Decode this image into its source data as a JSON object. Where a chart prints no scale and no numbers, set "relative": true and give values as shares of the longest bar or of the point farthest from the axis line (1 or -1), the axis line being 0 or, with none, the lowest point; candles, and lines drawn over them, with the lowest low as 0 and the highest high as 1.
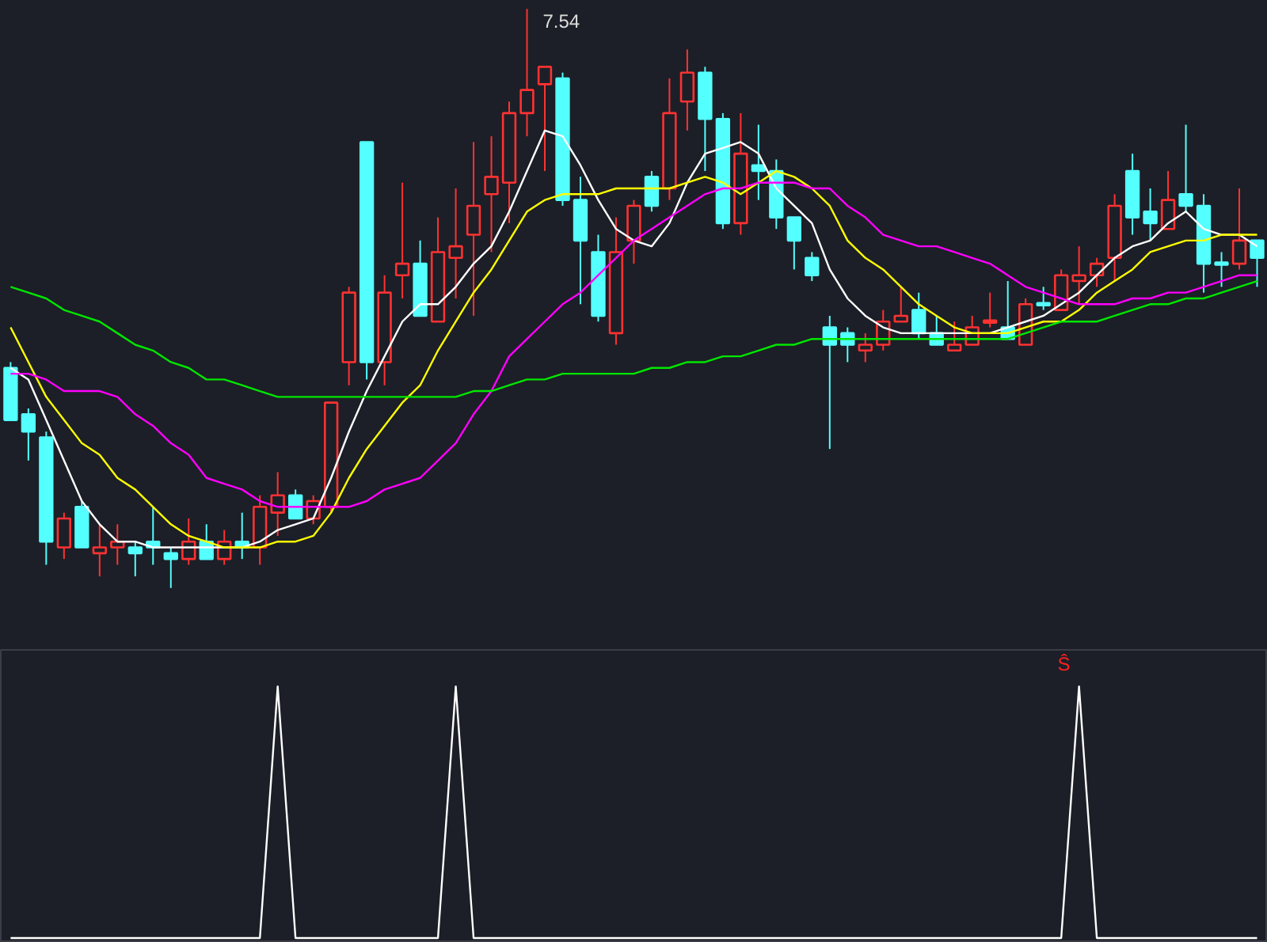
{
  "chart_data": [
    {
      "type": "candlestick",
      "relative": true,
      "categories": [
        null,
        null,
        null,
        null,
        null,
        null,
        null,
        null,
        null,
        null,
        null,
        null,
        null,
        null,
        null,
        null,
        null,
        null,
        null,
        null,
        null,
        null,
        null,
        null,
        null,
        null,
        null,
        null,
        null,
        null,
        null,
        null,
        null,
        null,
        null,
        null,
        null,
        null,
        null,
        null,
        null,
        null,
        null,
        null,
        null,
        null,
        null,
        null,
        null,
        null,
        null,
        null,
        null,
        null,
        null,
        null,
        null,
        null,
        null,
        null,
        null,
        null,
        null,
        null,
        null,
        null,
        null,
        null,
        null,
        null,
        null
      ],
      "ohlc": [
        [
          0.38,
          0.39,
          0.29,
          0.29
        ],
        [
          0.3,
          0.31,
          0.22,
          0.27
        ],
        [
          0.26,
          0.27,
          0.04,
          0.08
        ],
        [
          0.07,
          0.13,
          0.05,
          0.12
        ],
        [
          0.14,
          0.15,
          0.07,
          0.07
        ],
        [
          0.06,
          0.11,
          0.02,
          0.07
        ],
        [
          0.07,
          0.11,
          0.04,
          0.08
        ],
        [
          0.07,
          0.08,
          0.02,
          0.06
        ],
        [
          0.08,
          0.14,
          0.04,
          0.07
        ],
        [
          0.06,
          0.07,
          0,
          0.05
        ],
        [
          0.05,
          0.12,
          0.04,
          0.08
        ],
        [
          0.08,
          0.11,
          0.05,
          0.05
        ],
        [
          0.05,
          0.1,
          0.04,
          0.08
        ],
        [
          0.08,
          0.13,
          0.05,
          0.07
        ],
        [
          0.07,
          0.16,
          0.04,
          0.14
        ],
        [
          0.13,
          0.2,
          0.09,
          0.16
        ],
        [
          0.16,
          0.17,
          0.12,
          0.12
        ],
        [
          0.12,
          0.16,
          0.11,
          0.15
        ],
        [
          0.14,
          0.32,
          0.13,
          0.32
        ],
        [
          0.39,
          0.52,
          0.35,
          0.51
        ],
        [
          0.77,
          0.77,
          0.36,
          0.39
        ],
        [
          0.39,
          0.54,
          0.35,
          0.51
        ],
        [
          0.54,
          0.7,
          0.5,
          0.56
        ],
        [
          0.56,
          0.6,
          0.47,
          0.47
        ],
        [
          0.46,
          0.64,
          0.46,
          0.58
        ],
        [
          0.57,
          0.69,
          0.5,
          0.59
        ],
        [
          0.61,
          0.77,
          0.47,
          0.66
        ],
        [
          0.68,
          0.78,
          0.58,
          0.71
        ],
        [
          0.7,
          0.84,
          0.63,
          0.82
        ],
        [
          0.82,
          1,
          0.78,
          0.86
        ],
        [
          0.87,
          0.9,
          0.72,
          0.9
        ],
        [
          0.88,
          0.89,
          0.66,
          0.67
        ],
        [
          0.67,
          0.71,
          0.49,
          0.6
        ],
        [
          0.58,
          0.61,
          0.46,
          0.47
        ],
        [
          0.44,
          0.64,
          0.42,
          0.58
        ],
        [
          0.6,
          0.67,
          0.56,
          0.66
        ],
        [
          0.71,
          0.72,
          0.65,
          0.66
        ],
        [
          0.69,
          0.88,
          0.67,
          0.82
        ],
        [
          0.84,
          0.93,
          0.79,
          0.89
        ],
        [
          0.89,
          0.9,
          0.72,
          0.81
        ],
        [
          0.81,
          0.82,
          0.62,
          0.63
        ],
        [
          0.63,
          0.82,
          0.61,
          0.75
        ],
        [
          0.73,
          0.8,
          0.67,
          0.72
        ],
        [
          0.72,
          0.74,
          0.62,
          0.64
        ],
        [
          0.64,
          0.64,
          0.55,
          0.6
        ],
        [
          0.57,
          0.58,
          0.53,
          0.54
        ],
        [
          0.45,
          0.47,
          0.24,
          0.42
        ],
        [
          0.44,
          0.45,
          0.39,
          0.42
        ],
        [
          0.41,
          0.44,
          0.39,
          0.42
        ],
        [
          0.42,
          0.48,
          0.41,
          0.46
        ],
        [
          0.46,
          0.52,
          0.46,
          0.47
        ],
        [
          0.48,
          0.51,
          0.43,
          0.44
        ],
        [
          0.44,
          0.47,
          0.42,
          0.42
        ],
        [
          0.41,
          0.46,
          0.41,
          0.42
        ],
        [
          0.42,
          0.47,
          0.42,
          0.45
        ],
        [
          0.46,
          0.51,
          0.45,
          0.46
        ],
        [
          0.45,
          0.53,
          0.43,
          0.43
        ],
        [
          0.42,
          0.5,
          0.42,
          0.49
        ],
        [
          0.49,
          0.52,
          0.48,
          0.49
        ],
        [
          0.48,
          0.55,
          0.48,
          0.54
        ],
        [
          0.53,
          0.59,
          0.49,
          0.54
        ],
        [
          0.54,
          0.57,
          0.52,
          0.56
        ],
        [
          0.57,
          0.68,
          0.53,
          0.66
        ],
        [
          0.72,
          0.75,
          0.61,
          0.64
        ],
        [
          0.65,
          0.69,
          0.6,
          0.63
        ],
        [
          0.62,
          0.72,
          0.62,
          0.67
        ],
        [
          0.68,
          0.8,
          0.65,
          0.66
        ],
        [
          0.66,
          0.68,
          0.51,
          0.56
        ],
        [
          0.56,
          0.58,
          0.52,
          0.56
        ],
        [
          0.56,
          0.69,
          0.55,
          0.6
        ],
        [
          0.6,
          0.6,
          0.52,
          0.57
        ]
      ],
      "colors": [
        "#54ffff",
        "#54ffff",
        "#54ffff",
        "#ff3232",
        "#54ffff",
        "#ff3232",
        "#ff3232",
        "#54ffff",
        "#54ffff",
        "#54ffff",
        "#ff3232",
        "#54ffff",
        "#ff3232",
        "#54ffff",
        "#ff3232",
        "#ff3232",
        "#54ffff",
        "#ff3232",
        "#ff3232",
        "#ff3232",
        "#54ffff",
        "#ff3232",
        "#ff3232",
        "#54ffff",
        "#ff3232",
        "#ff3232",
        "#ff3232",
        "#ff3232",
        "#ff3232",
        "#ff3232",
        "#ff3232",
        "#54ffff",
        "#54ffff",
        "#54ffff",
        "#ff3232",
        "#ff3232",
        "#54ffff",
        "#ff3232",
        "#ff3232",
        "#54ffff",
        "#54ffff",
        "#ff3232",
        "#54ffff",
        "#54ffff",
        "#54ffff",
        "#54ffff",
        "#54ffff",
        "#54ffff",
        "#ff3232",
        "#ff3232",
        "#ff3232",
        "#54ffff",
        "#54ffff",
        "#ff3232",
        "#ff3232",
        "#ff3232",
        "#54ffff",
        "#ff3232",
        "#54ffff",
        "#ff3232",
        "#ff3232",
        "#ff3232",
        "#ff3232",
        "#54ffff",
        "#54ffff",
        "#ff3232",
        "#54ffff",
        "#54ffff",
        "#54ffff",
        "#ff3232",
        "#54ffff"
      ],
      "series": [
        {
          "type": "line",
          "color": "#ffffff",
          "values": [
            0.38,
            0.36,
            0.29,
            0.22,
            0.15,
            0.11,
            0.08,
            0.08,
            0.07,
            0.07,
            0.07,
            0.07,
            0.07,
            0.07,
            0.08,
            0.1,
            0.11,
            0.12,
            0.19,
            0.27,
            0.34,
            0.4,
            0.46,
            0.49,
            0.49,
            0.52,
            0.56,
            0.59,
            0.65,
            0.72,
            0.79,
            0.78,
            0.73,
            0.67,
            0.62,
            0.6,
            0.59,
            0.63,
            0.7,
            0.75,
            0.76,
            0.77,
            0.75,
            0.69,
            0.66,
            0.63,
            0.55,
            0.5,
            0.47,
            0.45,
            0.44,
            0.44,
            0.44,
            0.44,
            0.44,
            0.44,
            0.45,
            0.46,
            0.47,
            0.49,
            0.51,
            0.54,
            0.57,
            0.59,
            0.6,
            0.63,
            0.65,
            0.62,
            0.61,
            0.61,
            0.59
          ]
        },
        {
          "type": "line",
          "color": "#ffff00",
          "values": [
            0.45,
            0.39,
            0.33,
            0.29,
            0.25,
            0.23,
            0.19,
            0.17,
            0.14,
            0.11,
            0.09,
            0.08,
            0.07,
            0.07,
            0.07,
            0.08,
            0.08,
            0.09,
            0.13,
            0.19,
            0.24,
            0.28,
            0.32,
            0.35,
            0.41,
            0.46,
            0.51,
            0.55,
            0.6,
            0.65,
            0.67,
            0.68,
            0.68,
            0.68,
            0.69,
            0.69,
            0.69,
            0.69,
            0.7,
            0.71,
            0.7,
            0.68,
            0.7,
            0.72,
            0.71,
            0.69,
            0.66,
            0.6,
            0.57,
            0.55,
            0.52,
            0.49,
            0.47,
            0.45,
            0.44,
            0.44,
            0.44,
            0.45,
            0.46,
            0.46,
            0.48,
            0.51,
            0.53,
            0.55,
            0.58,
            0.59,
            0.6,
            0.6,
            0.61,
            0.61,
            0.61
          ]
        },
        {
          "type": "line",
          "color": "#ff00ff",
          "values": [
            0.37,
            0.37,
            0.36,
            0.34,
            0.34,
            0.34,
            0.33,
            0.3,
            0.28,
            0.25,
            0.23,
            0.19,
            0.18,
            0.17,
            0.15,
            0.14,
            0.14,
            0.14,
            0.14,
            0.14,
            0.15,
            0.17,
            0.18,
            0.19,
            0.22,
            0.25,
            0.3,
            0.34,
            0.4,
            0.43,
            0.46,
            0.49,
            0.51,
            0.54,
            0.57,
            0.6,
            0.62,
            0.64,
            0.66,
            0.68,
            0.69,
            0.69,
            0.7,
            0.7,
            0.7,
            0.69,
            0.69,
            0.66,
            0.64,
            0.61,
            0.6,
            0.59,
            0.59,
            0.58,
            0.57,
            0.56,
            0.54,
            0.52,
            0.51,
            0.5,
            0.49,
            0.49,
            0.49,
            0.5,
            0.5,
            0.51,
            0.51,
            0.52,
            0.53,
            0.54,
            0.54
          ]
        },
        {
          "type": "line",
          "color": "#00e600",
          "values": [
            0.52,
            0.51,
            0.5,
            0.48,
            0.47,
            0.46,
            0.44,
            0.42,
            0.41,
            0.39,
            0.38,
            0.36,
            0.36,
            0.35,
            0.34,
            0.33,
            0.33,
            0.33,
            0.33,
            0.33,
            0.33,
            0.33,
            0.33,
            0.33,
            0.33,
            0.33,
            0.34,
            0.34,
            0.35,
            0.36,
            0.36,
            0.37,
            0.37,
            0.37,
            0.37,
            0.37,
            0.38,
            0.38,
            0.39,
            0.39,
            0.4,
            0.4,
            0.41,
            0.42,
            0.42,
            0.43,
            0.43,
            0.43,
            0.43,
            0.43,
            0.43,
            0.43,
            0.43,
            0.43,
            0.43,
            0.43,
            0.43,
            0.44,
            0.45,
            0.46,
            0.46,
            0.46,
            0.47,
            0.48,
            0.49,
            0.49,
            0.5,
            0.5,
            0.51,
            0.52,
            0.53
          ]
        }
      ],
      "annotations": [
        "7.54"
      ]
    },
    {
      "type": "line",
      "relative": true,
      "categories": [
        null,
        null,
        null,
        null,
        null,
        null,
        null,
        null,
        null,
        null,
        null,
        null,
        null,
        null,
        null,
        null,
        null,
        null,
        null,
        null,
        null,
        null,
        null,
        null,
        null,
        null,
        null,
        null,
        null,
        null,
        null,
        null,
        null,
        null,
        null,
        null,
        null,
        null,
        null,
        null,
        null,
        null,
        null,
        null,
        null,
        null,
        null,
        null,
        null,
        null,
        null,
        null,
        null,
        null,
        null,
        null,
        null,
        null,
        null,
        null,
        null,
        null,
        null,
        null,
        null,
        null,
        null,
        null,
        null,
        null,
        null
      ],
      "series": [
        {
          "color": "#ffffff",
          "values": [
            0,
            0,
            0,
            0,
            0,
            0,
            0,
            0,
            0,
            0,
            0,
            0,
            0,
            0,
            0,
            1,
            0,
            0,
            0,
            0,
            0,
            0,
            0,
            0,
            0,
            1,
            0,
            0,
            0,
            0,
            0,
            0,
            0,
            0,
            0,
            0,
            0,
            0,
            0,
            0,
            0,
            0,
            0,
            0,
            0,
            0,
            0,
            0,
            0,
            0,
            0,
            0,
            0,
            0,
            0,
            0,
            0,
            0,
            0,
            0,
            1,
            0,
            0,
            0,
            0,
            0,
            0,
            0,
            0,
            0,
            0
          ]
        }
      ],
      "annotations": [
        "Ŝ"
      ]
    }
  ]
}
